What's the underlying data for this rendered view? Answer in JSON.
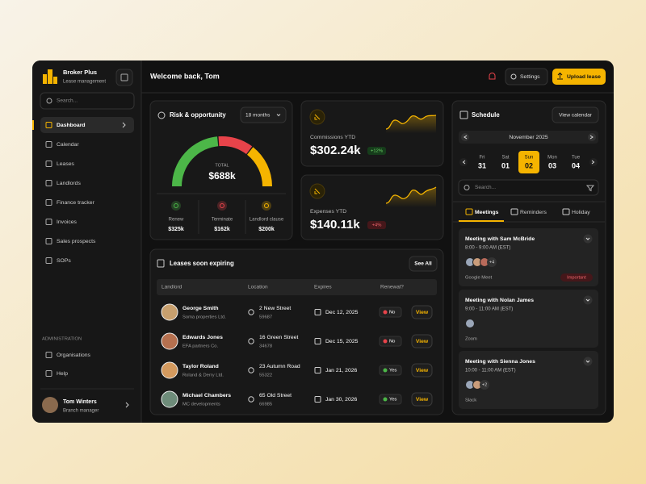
{
  "app": {
    "name": "Broker Plus",
    "subtitle": "Lease management"
  },
  "sidebar": {
    "search_placeholder": "Search...",
    "nav": [
      {
        "label": "Dashboard",
        "active": true
      },
      {
        "label": "Calendar"
      },
      {
        "label": "Leases"
      },
      {
        "label": "Landlords"
      },
      {
        "label": "Finance tracker"
      },
      {
        "label": "Invoices"
      },
      {
        "label": "Sales prospects"
      },
      {
        "label": "SOPs"
      }
    ],
    "admin_heading": "ADMINISTRATION",
    "admin": [
      "Organisations",
      "Help"
    ],
    "user": {
      "name": "Tom Winters",
      "role": "Branch manager"
    }
  },
  "header": {
    "welcome": "Welcome back, Tom",
    "settings": "Settings",
    "upload": "Upload lease"
  },
  "risk": {
    "title": "Risk & opportunity",
    "period": "18 months",
    "total_label": "TOTAL",
    "total": "$688k",
    "items": [
      {
        "label": "Renew",
        "value": 325000,
        "value_label": "$325k",
        "color": "#4cb648"
      },
      {
        "label": "Terminate",
        "value": 162000,
        "value_label": "$162k",
        "color": "#e8434a"
      },
      {
        "label": "Landlord clause",
        "value": 200000,
        "value_label": "$200k",
        "color": "#f5b400"
      }
    ]
  },
  "commissions": {
    "label": "Commissions YTD",
    "value": "$302.24k",
    "change": "+12%"
  },
  "expenses": {
    "label": "Expenses YTD",
    "value": "$140.11k",
    "change": "+4%"
  },
  "leases": {
    "title": "Leases soon expiring",
    "see_all": "See All",
    "columns": [
      "Landlord",
      "Location",
      "Expires",
      "Renewal?"
    ],
    "rows": [
      {
        "name": "George Smith",
        "company": "Soma properties Ltd.",
        "street": "2 New Street",
        "postcode": "59687",
        "expires": "Dec 12, 2025",
        "renewal": "No",
        "renewal_color": "#e8434a",
        "action": "View"
      },
      {
        "name": "Edwards Jones",
        "company": "EFA partners Co.",
        "street": "16 Green Street",
        "postcode": "34678",
        "expires": "Dec 15, 2025",
        "renewal": "No",
        "renewal_color": "#e8434a",
        "action": "View"
      },
      {
        "name": "Taylor Roland",
        "company": "Roland & Derry Ltd.",
        "street": "23 Autumn Road",
        "postcode": "55322",
        "expires": "Jan 21, 2026",
        "renewal": "Yes",
        "renewal_color": "#4cb648",
        "action": "View"
      },
      {
        "name": "Michael Chambers",
        "company": "MC developments",
        "street": "65 Old Street",
        "postcode": "66985",
        "expires": "Jan 30, 2026",
        "renewal": "Yes",
        "renewal_color": "#4cb648",
        "action": "View"
      }
    ]
  },
  "schedule": {
    "title": "Schedule",
    "view_calendar": "View calendar",
    "month": "November 2025",
    "days": [
      {
        "name": "Fri",
        "date": "31"
      },
      {
        "name": "Sat",
        "date": "01"
      },
      {
        "name": "Sun",
        "date": "02",
        "selected": true
      },
      {
        "name": "Mon",
        "date": "03"
      },
      {
        "name": "Tue",
        "date": "04"
      }
    ],
    "search_placeholder": "Search...",
    "tabs": [
      "Meetings",
      "Reminders",
      "Holiday"
    ],
    "meetings": [
      {
        "title": "Meeting with Sam McBride",
        "time": "8:00 - 9:00 AM (EST)",
        "platform": "Google Meet",
        "extra": "+4",
        "tag": "Important"
      },
      {
        "title": "Meeting with Nolan James",
        "time": "9:00 - 11:00 AM (EST)",
        "platform": "Zoom"
      },
      {
        "title": "Meeting with Sienna Jones",
        "time": "10:00 - 11:00 AM (EST)",
        "platform": "Slack",
        "extra": "+2"
      }
    ]
  }
}
